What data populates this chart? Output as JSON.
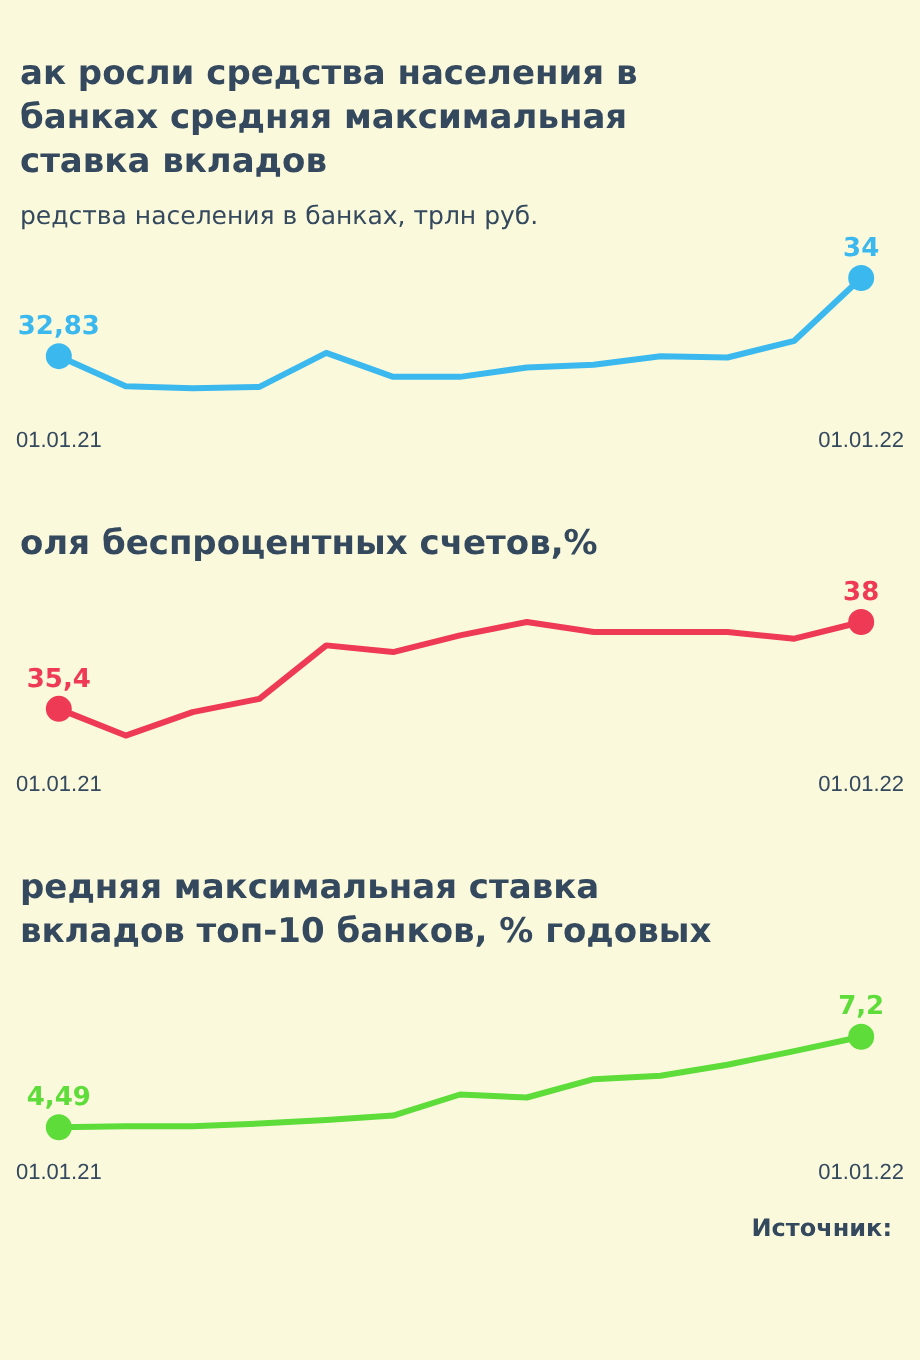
{
  "chart_data": [
    {
      "type": "line",
      "title": "ак росли средства населения в банках средняя максимальная ставка вкладов",
      "subtitle": "редства населения в банках, трлн руб.",
      "categories": [
        "01.01.21",
        null,
        null,
        null,
        null,
        null,
        null,
        null,
        null,
        null,
        null,
        null,
        "01.01.22"
      ],
      "series": [
        {
          "color": "#3bb9ef",
          "values": [
            32.83,
            32.38,
            32.35,
            32.37,
            32.88,
            32.52,
            32.52,
            32.66,
            32.7,
            32.83,
            32.81,
            33.06,
            34
          ],
          "value_labels": [
            "32,83",
            null,
            null,
            null,
            null,
            null,
            null,
            null,
            null,
            null,
            null,
            null,
            "34"
          ]
        }
      ],
      "grid": false,
      "legend": false,
      "tick_labels": "x"
    },
    {
      "type": "line",
      "title": "оля беспроцентных счетов,%",
      "categories": [
        "01.01.21",
        null,
        null,
        null,
        null,
        null,
        null,
        null,
        null,
        null,
        null,
        null,
        "01.01.22"
      ],
      "series": [
        {
          "color": "#ee3a55",
          "values": [
            35.4,
            34.6,
            35.3,
            35.7,
            37.3,
            37.1,
            37.6,
            38,
            37.7,
            37.7,
            37.7,
            37.5,
            38
          ],
          "value_labels": [
            "35,4",
            null,
            null,
            null,
            null,
            null,
            null,
            null,
            null,
            null,
            null,
            null,
            "38"
          ]
        }
      ],
      "grid": false,
      "legend": false,
      "tick_labels": "x"
    },
    {
      "type": "line",
      "title": "редняя максимальная ставка вкладов топ-10 банков, % годовых",
      "categories": [
        "01.01.21",
        null,
        null,
        null,
        null,
        null,
        null,
        null,
        null,
        null,
        null,
        null,
        "01.01.22"
      ],
      "series": [
        {
          "color": "#5ddc3a",
          "values": [
            4.49,
            4.52,
            4.52,
            4.6,
            4.71,
            4.84,
            5.47,
            5.38,
            5.93,
            6.03,
            6.36,
            6.77,
            7.2
          ],
          "value_labels": [
            "4,49",
            null,
            null,
            null,
            null,
            null,
            null,
            null,
            null,
            null,
            null,
            null,
            "7,2"
          ]
        }
      ],
      "grid": false,
      "legend": false,
      "tick_labels": "x",
      "annotations": [
        "Источник:"
      ]
    }
  ]
}
